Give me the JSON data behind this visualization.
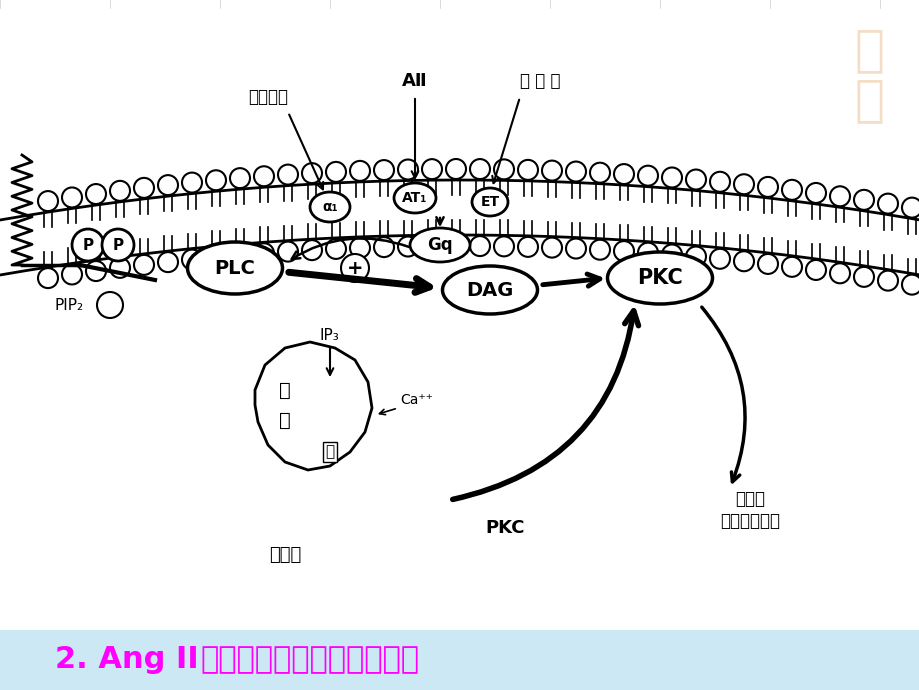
{
  "background_color": "#ffffff",
  "footer_bg_color": "#cce8f4",
  "footer_text_color": "#ff00ff",
  "labels": {
    "shen_shang_xian_su": "肾上腺素",
    "AII": "AⅡ",
    "nei_pi_su": "内 皮 素",
    "alpha1": "α₁",
    "AT1": "AT₁",
    "ET": "ET",
    "Gq": "Gq",
    "PLC": "PLC",
    "DAG": "DAG",
    "PKC_top": "PKC",
    "PIP2": "PIP₂",
    "IP3": "IP₃",
    "Ca": "Ca⁺⁺",
    "ji": "肌",
    "jiang": "浆",
    "wang": "网",
    "xi_bao_jiang": "细胞浆",
    "PKC_bottom": "PKC",
    "cu_sheng_zhang": "促生长",
    "ji_huo_yuan_ai": "激活原癌基因",
    "title_bold": "2. Ang II",
    "title_rest": "促生长作用的信号转导通路"
  }
}
